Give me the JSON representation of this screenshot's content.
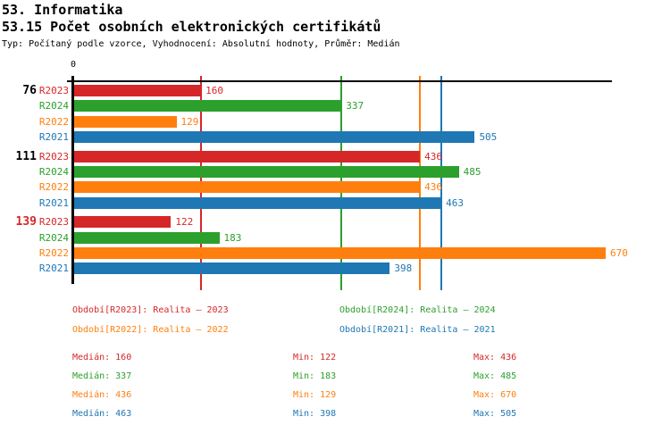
{
  "header": {
    "line1": "53. Informatika",
    "line2": "53.15 Počet osobních elektronických certifikátů",
    "meta": "Typ: Počítaný podle vzorce, Vyhodnocení: Absolutní hodnoty, Průměr: Medián"
  },
  "colors": {
    "R2023": "#d62728",
    "R2024": "#2ca02c",
    "R2022": "#ff7f0e",
    "R2021": "#1f77b4",
    "axis": "#000000",
    "group_label_alert": "#d62728",
    "group_label_normal": "#000000"
  },
  "chart_data": {
    "type": "bar",
    "orientation": "horizontal",
    "title": "53.15 Počet osobních elektronických certifikátů",
    "x_axis": {
      "origin_label": "0",
      "min": 0,
      "max": 681,
      "gridlines": false
    },
    "series_order": [
      "R2023",
      "R2024",
      "R2022",
      "R2021"
    ],
    "series_colors": {
      "R2023": "#d62728",
      "R2024": "#2ca02c",
      "R2022": "#ff7f0e",
      "R2021": "#1f77b4"
    },
    "groups": [
      {
        "label": "76",
        "label_color": "#000000",
        "values": {
          "R2023": 160,
          "R2024": 337,
          "R2022": 129,
          "R2021": 505
        }
      },
      {
        "label": "111",
        "label_color": "#000000",
        "values": {
          "R2023": 436,
          "R2024": 485,
          "R2022": 436,
          "R2021": 463
        }
      },
      {
        "label": "139",
        "label_color": "#d62728",
        "values": {
          "R2023": 122,
          "R2024": 183,
          "R2022": 670,
          "R2021": 398
        }
      }
    ],
    "median_lines": [
      {
        "series": "R2023",
        "value": 160
      },
      {
        "series": "R2024",
        "value": 337
      },
      {
        "series": "R2022",
        "value": 436
      },
      {
        "series": "R2021",
        "value": 463
      }
    ]
  },
  "legend": {
    "items": [
      {
        "series": "R2023",
        "label": "Období[R2023]: Realita – 2023"
      },
      {
        "series": "R2024",
        "label": "Období[R2024]: Realita – 2024"
      },
      {
        "series": "R2022",
        "label": "Období[R2022]: Realita – 2022"
      },
      {
        "series": "R2021",
        "label": "Období[R2021]: Realita – 2021"
      }
    ]
  },
  "stats": {
    "median_label": "Medián",
    "min_label": "Min",
    "max_label": "Max",
    "rows": [
      {
        "series": "R2023",
        "median": 160,
        "min": 122,
        "max": 436
      },
      {
        "series": "R2024",
        "median": 337,
        "min": 183,
        "max": 485
      },
      {
        "series": "R2022",
        "median": 436,
        "min": 129,
        "max": 670
      },
      {
        "series": "R2021",
        "median": 463,
        "min": 398,
        "max": 505
      }
    ]
  }
}
